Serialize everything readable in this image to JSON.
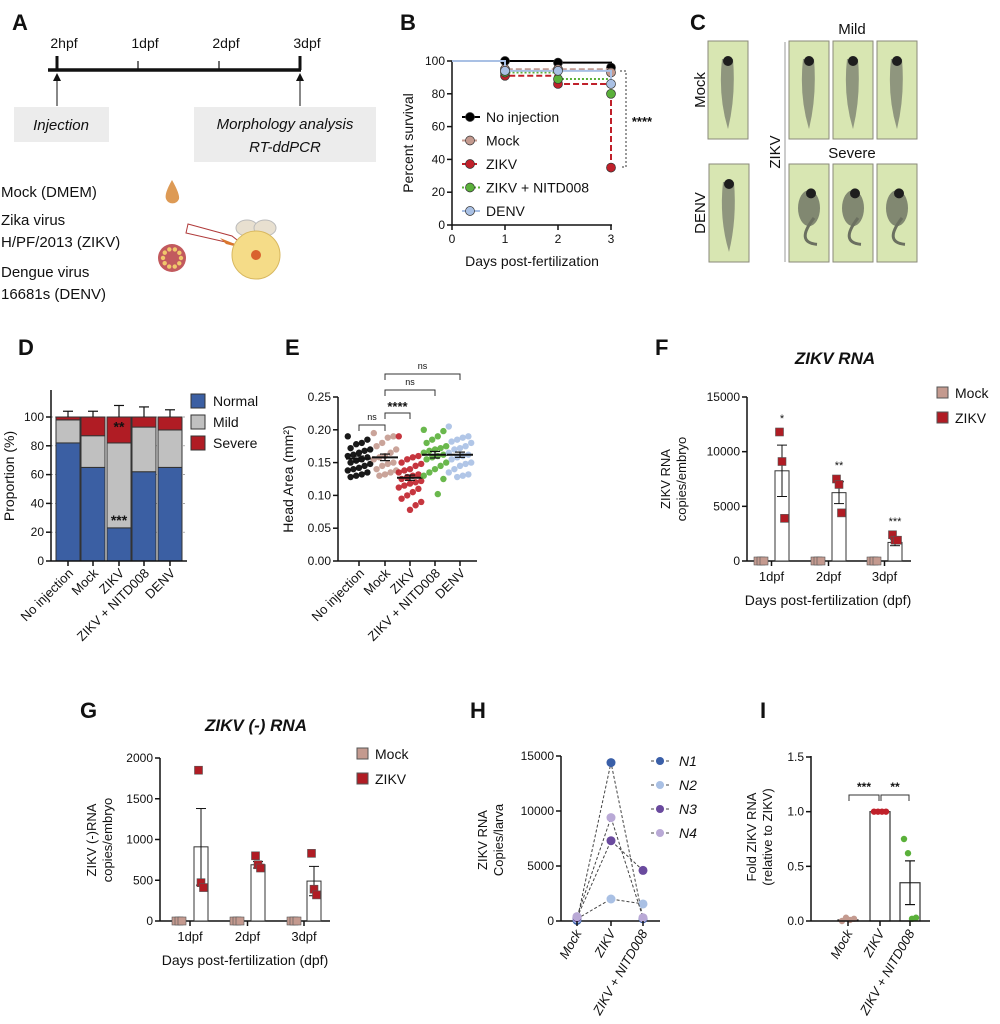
{
  "panel_labels": [
    "A",
    "B",
    "C",
    "D",
    "E",
    "F",
    "G",
    "H",
    "I"
  ],
  "timeline": {
    "ticks": [
      "2hpf",
      "1dpf",
      "2dpf",
      "3dpf"
    ],
    "injection": "Injection",
    "analysis": [
      "Morphology analysis",
      "RT-ddPCR"
    ],
    "legend": [
      "Mock (DMEM)",
      "Zika virus",
      "H/PF/2013 (ZIKV)",
      "Dengue virus",
      "16681s (DENV)"
    ],
    "icons": [
      "droplet-icon",
      "virus-icon",
      "micropipette-icon",
      "embryo-icon"
    ]
  },
  "images": {
    "rows": [
      "Mock",
      "DENV"
    ],
    "group": "ZIKV",
    "mild": "Mild",
    "severe": "Severe",
    "bg_color": "#d8e6b2"
  },
  "chart_data": [
    {
      "panel": "B",
      "type": "line",
      "xlabel": "Days post-fertilization",
      "ylabel": "Percent survival",
      "x": [
        0,
        1,
        2,
        3
      ],
      "xticks": [
        "0",
        "1",
        "2",
        "3"
      ],
      "yticks": [
        "0",
        "20",
        "40",
        "60",
        "80",
        "100"
      ],
      "xlim": [
        0,
        3
      ],
      "ylim": [
        0,
        100
      ],
      "series": [
        {
          "name": "No injection",
          "color": "#000000",
          "dash": "",
          "values": [
            100,
            100,
            99,
            96
          ]
        },
        {
          "name": "Mock",
          "color": "#c49a8f",
          "dash": "6,3",
          "values": [
            100,
            95,
            95,
            93
          ]
        },
        {
          "name": "ZIKV",
          "color": "#c0202a",
          "dash": "6,3",
          "values": [
            100,
            91,
            86,
            35
          ]
        },
        {
          "name": "ZIKV + NITD008",
          "color": "#5ab03a",
          "dash": "2,2",
          "values": [
            100,
            93,
            89,
            80
          ]
        },
        {
          "name": "DENV",
          "color": "#a9c0e4",
          "dash": "",
          "values": [
            100,
            94,
            94,
            86
          ]
        }
      ],
      "annotation": "****"
    },
    {
      "panel": "D",
      "type": "bar",
      "stacked": true,
      "ylabel": "Proportion (%)",
      "categories": [
        "No injection",
        "Mock",
        "ZIKV",
        "ZIKV + NITD008",
        "DENV"
      ],
      "yticks": [
        "0",
        "20",
        "40",
        "60",
        "80",
        "100"
      ],
      "ylim": [
        0,
        100
      ],
      "grid": true,
      "legend": "right",
      "series": [
        {
          "name": "Normal",
          "color": "#3b5fa3",
          "values": [
            82,
            65,
            23,
            62,
            65
          ],
          "err": [
            7,
            10,
            3,
            13,
            8
          ]
        },
        {
          "name": "Mild",
          "color": "#c0c0c0",
          "values": [
            16,
            22,
            59,
            31,
            26
          ],
          "err": [
            0,
            6,
            7,
            6,
            7
          ]
        },
        {
          "name": "Severe",
          "color": "#b01c24",
          "values": [
            2,
            13,
            18,
            7,
            9
          ],
          "err": [
            4,
            4,
            8,
            7,
            5
          ]
        }
      ],
      "annotations": [
        {
          "category": "ZIKV",
          "series": "Severe",
          "text": "**"
        },
        {
          "category": "ZIKV",
          "series": "Normal",
          "text": "***"
        }
      ]
    },
    {
      "panel": "E",
      "type": "scatter",
      "ylabel": "Head Area (mm²)",
      "categories": [
        "No injection",
        "Mock",
        "ZIKV",
        "ZIKV + NITD008",
        "DENV"
      ],
      "yticks": [
        "0.00",
        "0.05",
        "0.10",
        "0.15",
        "0.20",
        "0.25"
      ],
      "ylim": [
        0,
        0.25
      ],
      "colors": [
        "#000000",
        "#c49a8f",
        "#c0202a",
        "#5ab03a",
        "#a9c0e4"
      ],
      "means": [
        0.156,
        0.158,
        0.127,
        0.162,
        0.162
      ],
      "sems": [
        0.004,
        0.005,
        0.004,
        0.005,
        0.004
      ],
      "values": [
        [
          0.19,
          0.185,
          0.18,
          0.178,
          0.172,
          0.17,
          0.168,
          0.165,
          0.162,
          0.16,
          0.158,
          0.155,
          0.153,
          0.15,
          0.148,
          0.145,
          0.142,
          0.14,
          0.138,
          0.135,
          0.132,
          0.13,
          0.128
        ],
        [
          0.195,
          0.19,
          0.188,
          0.18,
          0.175,
          0.17,
          0.165,
          0.16,
          0.158,
          0.155,
          0.15,
          0.148,
          0.145,
          0.14,
          0.138,
          0.135,
          0.132,
          0.13
        ],
        [
          0.19,
          0.16,
          0.158,
          0.155,
          0.15,
          0.148,
          0.145,
          0.14,
          0.138,
          0.135,
          0.132,
          0.13,
          0.128,
          0.125,
          0.122,
          0.12,
          0.118,
          0.115,
          0.112,
          0.11,
          0.105,
          0.1,
          0.095,
          0.09,
          0.085,
          0.078
        ],
        [
          0.2,
          0.198,
          0.19,
          0.185,
          0.18,
          0.175,
          0.172,
          0.17,
          0.168,
          0.165,
          0.162,
          0.16,
          0.158,
          0.155,
          0.15,
          0.145,
          0.14,
          0.135,
          0.13,
          0.125,
          0.102
        ],
        [
          0.205,
          0.19,
          0.188,
          0.185,
          0.182,
          0.18,
          0.175,
          0.172,
          0.17,
          0.165,
          0.162,
          0.16,
          0.158,
          0.155,
          0.15,
          0.148,
          0.145,
          0.14,
          0.135,
          0.132,
          0.13,
          0.128
        ]
      ],
      "comparisons": [
        {
          "a": 0,
          "b": 1,
          "label": "ns"
        },
        {
          "a": 1,
          "b": 2,
          "label": "****"
        },
        {
          "a": 1,
          "b": 3,
          "label": "ns"
        },
        {
          "a": 1,
          "b": 4,
          "label": "ns"
        }
      ]
    },
    {
      "panel": "F",
      "type": "bar",
      "title": "ZIKV RNA",
      "ylabel": [
        "ZIKV RNA",
        "copies/embryo"
      ],
      "xlabel": "Days post-fertilization (dpf)",
      "categories": [
        "1dpf",
        "2dpf",
        "3dpf"
      ],
      "yticks": [
        "0",
        "5000",
        "10000",
        "15000"
      ],
      "ylim": [
        0,
        15000
      ],
      "series": [
        {
          "name": "Mock",
          "color": "#c49a8f",
          "means": [
            0,
            0,
            0
          ],
          "sems": [
            0,
            0,
            0
          ],
          "points": [
            [
              0,
              0,
              0
            ],
            [
              0,
              0,
              0
            ],
            [
              0,
              0,
              0
            ]
          ]
        },
        {
          "name": "ZIKV",
          "color": "#b01c24",
          "means": [
            8250,
            6250,
            1700
          ],
          "sems": [
            2350,
            1000,
            300
          ],
          "points": [
            [
              11800,
              9100,
              3900
            ],
            [
              7500,
              7000,
              4400
            ],
            [
              2400,
              1900,
              1900
            ]
          ]
        }
      ],
      "stars": [
        "*",
        "**",
        "***"
      ]
    },
    {
      "panel": "G",
      "type": "bar",
      "title": "ZIKV (-) RNA",
      "ylabel": [
        "ZIKV (-)RNA",
        "copies/embryo"
      ],
      "xlabel": "Days post-fertilization (dpf)",
      "categories": [
        "1dpf",
        "2dpf",
        "3dpf"
      ],
      "yticks": [
        "0",
        "500",
        "1000",
        "1500",
        "2000"
      ],
      "ylim": [
        0,
        2000
      ],
      "series": [
        {
          "name": "Mock",
          "color": "#c49a8f",
          "means": [
            0,
            0,
            0
          ],
          "sems": [
            0,
            0,
            0
          ],
          "points": [
            [
              0,
              0,
              0
            ],
            [
              0,
              0,
              0
            ],
            [
              0,
              0,
              0
            ]
          ]
        },
        {
          "name": "ZIKV",
          "color": "#b01c24",
          "means": [
            910,
            690,
            490
          ],
          "sems": [
            470,
            40,
            180
          ],
          "points": [
            [
              1850,
              470,
              410
            ],
            [
              800,
              690,
              650
            ],
            [
              830,
              390,
              320
            ]
          ]
        }
      ],
      "stars": [
        "",
        "",
        ""
      ]
    },
    {
      "panel": "H",
      "type": "line",
      "ylabel": [
        "ZIKV RNA",
        "Copies/larva"
      ],
      "categories": [
        "Mock",
        "ZIKV",
        "ZIKV + NITD008"
      ],
      "yticks": [
        "0",
        "5000",
        "10000",
        "15000"
      ],
      "ylim": [
        0,
        15000
      ],
      "series": [
        {
          "name": "N1",
          "color": "#3a5fa8",
          "values": [
            50,
            14400,
            200
          ]
        },
        {
          "name": "N2",
          "color": "#a9c0e4",
          "values": [
            200,
            2000,
            1550
          ]
        },
        {
          "name": "N3",
          "color": "#6a4a9e",
          "values": [
            300,
            7300,
            4600
          ]
        },
        {
          "name": "N4",
          "color": "#b9a9d6",
          "values": [
            400,
            9400,
            300
          ]
        }
      ]
    },
    {
      "panel": "I",
      "type": "bar",
      "ylabel": [
        "Fold ZIKV RNA",
        "(relative to ZIKV)"
      ],
      "categories": [
        "Mock",
        "ZIKV",
        "ZIKV + NITD008"
      ],
      "yticks": [
        "0.0",
        "0.5",
        "1.0",
        "1.5"
      ],
      "ylim": [
        0,
        1.5
      ],
      "colors": [
        "#c49a8f",
        "#c0202a",
        "#5ab03a"
      ],
      "means": [
        0.01,
        1.0,
        0.35
      ],
      "sems": [
        0.01,
        0,
        0.2
      ],
      "points": [
        [
          0,
          0.03,
          0.01,
          0.02
        ],
        [
          1,
          1,
          1,
          1
        ],
        [
          0.75,
          0.62,
          0.02,
          0.03
        ]
      ],
      "comparisons": [
        {
          "a": 0,
          "b": 1,
          "label": "***"
        },
        {
          "a": 1,
          "b": 2,
          "label": "**"
        }
      ]
    }
  ]
}
